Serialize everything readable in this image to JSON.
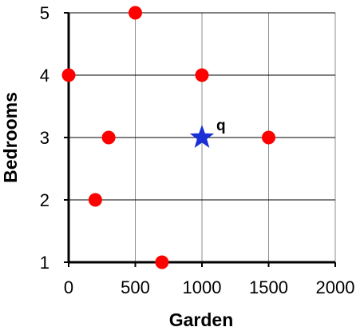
{
  "chart_data": {
    "type": "scatter",
    "title": "",
    "xlabel": "Garden",
    "ylabel": "Bedrooms",
    "xlim": [
      0,
      2000
    ],
    "ylim": [
      1,
      5
    ],
    "x_ticks": [
      "0",
      "500",
      "1000",
      "1500",
      "2000"
    ],
    "y_ticks": [
      "1",
      "2",
      "3",
      "4",
      "5"
    ],
    "grid": true,
    "legend": "none",
    "series": [
      {
        "marker": "circle",
        "color": "#ff0000",
        "points": [
          {
            "x": 500,
            "y": 5
          },
          {
            "x": 0,
            "y": 4
          },
          {
            "x": 1000,
            "y": 4
          },
          {
            "x": 300,
            "y": 3
          },
          {
            "x": 1500,
            "y": 3
          },
          {
            "x": 200,
            "y": 2
          },
          {
            "x": 700,
            "y": 1
          }
        ]
      },
      {
        "marker": "star",
        "color": "#1a2fd6",
        "points": [
          {
            "x": 1000,
            "y": 3,
            "label": "q"
          }
        ]
      }
    ]
  }
}
